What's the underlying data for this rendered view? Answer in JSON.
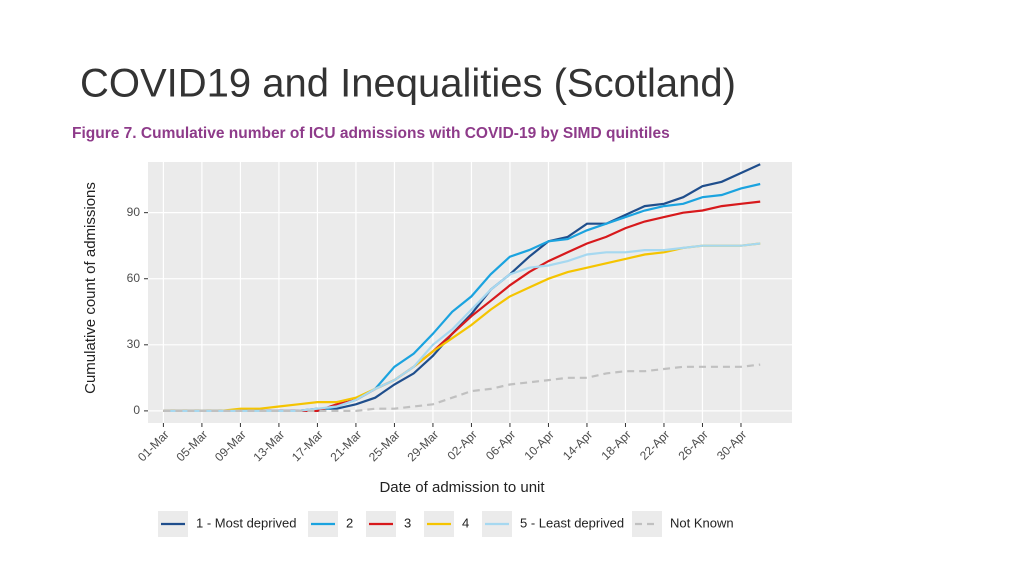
{
  "header": {
    "title": "COVID19 and Inequalities (Scotland)"
  },
  "chart_data": {
    "type": "line",
    "title": "Figure 7. Cumulative number of ICU admissions with COVID-19 by SIMD quintiles",
    "x_label": "Date of admission to unit",
    "y_label": "Cumulative count of admissions",
    "x": [
      0,
      2,
      4,
      6,
      8,
      10,
      12,
      14,
      16,
      18,
      20,
      22,
      24,
      26,
      28,
      30,
      32,
      34,
      36,
      38,
      40,
      42,
      44,
      46,
      48,
      50,
      52,
      54,
      56,
      58,
      60,
      62
    ],
    "xlim": [
      -1.6,
      65.3
    ],
    "xticks": [
      {
        "value": 0,
        "label": "01-Mar"
      },
      {
        "value": 4,
        "label": "05-Mar"
      },
      {
        "value": 8,
        "label": "09-Mar"
      },
      {
        "value": 12,
        "label": "13-Mar"
      },
      {
        "value": 16,
        "label": "17-Mar"
      },
      {
        "value": 20,
        "label": "21-Mar"
      },
      {
        "value": 24,
        "label": "25-Mar"
      },
      {
        "value": 28,
        "label": "29-Mar"
      },
      {
        "value": 32,
        "label": "02-Apr"
      },
      {
        "value": 36,
        "label": "06-Apr"
      },
      {
        "value": 40,
        "label": "10-Apr"
      },
      {
        "value": 44,
        "label": "14-Apr"
      },
      {
        "value": 48,
        "label": "18-Apr"
      },
      {
        "value": 52,
        "label": "22-Apr"
      },
      {
        "value": 56,
        "label": "26-Apr"
      },
      {
        "value": 60,
        "label": "30-Apr"
      }
    ],
    "ylim": [
      -5.5,
      113
    ],
    "yticks": [
      0,
      30,
      60,
      90
    ],
    "grid": true,
    "legend": "bottom",
    "series": [
      {
        "name": "1 - Most deprived",
        "color": "#1f4e8c",
        "line_style": "solid",
        "values": [
          0,
          0,
          0,
          0,
          0,
          0,
          0,
          0,
          1,
          1,
          3,
          6,
          12,
          17,
          25,
          35,
          44,
          55,
          62,
          70,
          77,
          79,
          85,
          85,
          89,
          93,
          94,
          97,
          102,
          104,
          108,
          112
        ]
      },
      {
        "name": "2",
        "color": "#1ba3df",
        "line_style": "solid",
        "values": [
          0,
          0,
          0,
          0,
          0,
          0,
          0,
          0,
          0,
          2,
          5,
          10,
          20,
          26,
          35,
          45,
          52,
          62,
          70,
          73,
          77,
          78,
          82,
          85,
          88,
          91,
          93,
          94,
          97,
          98,
          101,
          103
        ]
      },
      {
        "name": "3",
        "color": "#d7191c",
        "line_style": "solid",
        "values": [
          0,
          0,
          0,
          0,
          0,
          0,
          0,
          0,
          0,
          3,
          5,
          10,
          14,
          20,
          27,
          35,
          43,
          50,
          57,
          63,
          68,
          72,
          76,
          79,
          83,
          86,
          88,
          90,
          91,
          93,
          94,
          95
        ]
      },
      {
        "name": "4",
        "color": "#f5c400",
        "line_style": "solid",
        "values": [
          0,
          0,
          0,
          0,
          1,
          1,
          2,
          3,
          4,
          4,
          6,
          10,
          14,
          20,
          27,
          33,
          39,
          46,
          52,
          56,
          60,
          63,
          65,
          67,
          69,
          71,
          72,
          74,
          75,
          75,
          75,
          76
        ]
      },
      {
        "name": "5 - Least deprived",
        "color": "#a6d8f0",
        "line_style": "solid",
        "values": [
          0,
          0,
          0,
          0,
          0,
          0,
          0,
          0,
          1,
          2,
          5,
          10,
          14,
          20,
          30,
          37,
          46,
          55,
          62,
          65,
          66,
          68,
          71,
          72,
          72,
          73,
          73,
          74,
          75,
          75,
          75,
          76
        ]
      },
      {
        "name": "Not Known",
        "color": "#c0c0c0",
        "line_style": "dashed",
        "values": [
          0,
          0,
          0,
          0,
          0,
          0,
          0,
          0,
          0,
          0,
          0,
          1,
          1,
          2,
          3,
          6,
          9,
          10,
          12,
          13,
          14,
          15,
          15,
          17,
          18,
          18,
          19,
          20,
          20,
          20,
          20,
          21
        ]
      }
    ]
  }
}
